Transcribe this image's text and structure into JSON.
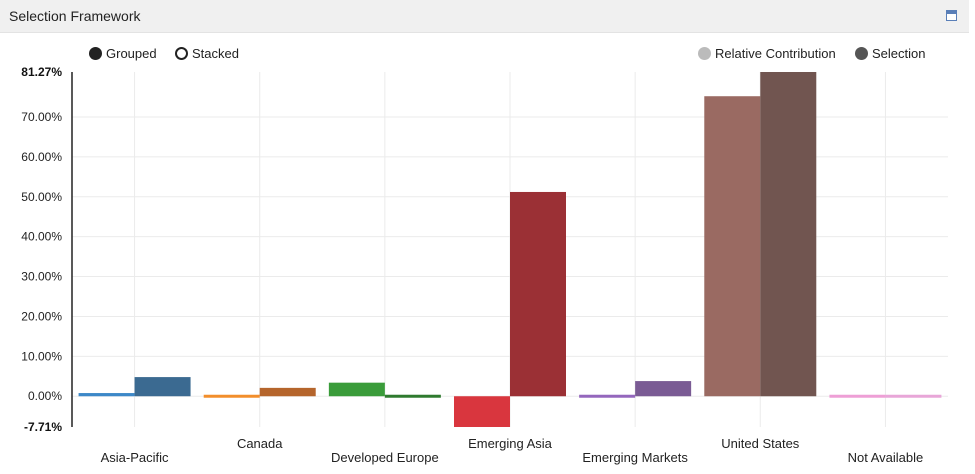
{
  "panel": {
    "title": "Selection Framework"
  },
  "controls": {
    "grouped_label": "Grouped",
    "stacked_label": "Stacked",
    "selected_mode": "Grouped"
  },
  "legend": [
    {
      "name": "Relative Contribution",
      "color": "#bbbbbb"
    },
    {
      "name": "Selection",
      "color": "#555555"
    }
  ],
  "chart_data": {
    "type": "bar",
    "mode": "grouped",
    "categories": [
      "Asia-Pacific",
      "Canada",
      "Developed Europe",
      "Emerging Asia",
      "Emerging Markets",
      "United States",
      "Not Available"
    ],
    "series": [
      {
        "name": "Relative Contribution",
        "values": [
          0.8,
          -0.7,
          3.4,
          -7.71,
          -0.7,
          75.2,
          0.2
        ]
      },
      {
        "name": "Selection",
        "values": [
          4.8,
          2.1,
          -0.3,
          51.2,
          3.8,
          81.27,
          0.2
        ]
      }
    ],
    "category_colors": [
      [
        "#3d88c8",
        "#3b6a91"
      ],
      [
        "#f28e2b",
        "#b5652c"
      ],
      [
        "#3a9c3a",
        "#2e7a2e"
      ],
      [
        "#d9363e",
        "#9b3035"
      ],
      [
        "#9467bd",
        "#7a5b94"
      ],
      [
        "#9a6a62",
        "#715550"
      ],
      [
        "#ee9fd6",
        "#e8a6d8"
      ]
    ],
    "ylim": [
      -7.71,
      81.27
    ],
    "yticks": [
      0,
      10,
      20,
      30,
      40,
      50,
      60,
      70
    ],
    "ytick_labels": [
      "0.00%",
      "10.00%",
      "20.00%",
      "30.00%",
      "40.00%",
      "50.00%",
      "60.00%",
      "70.00%"
    ],
    "ymax_label": "81.27%",
    "ymin_label": "-7.71%",
    "grid": true,
    "legend_position": "top-right"
  }
}
